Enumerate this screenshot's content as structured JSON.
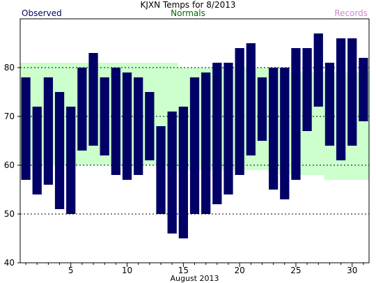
{
  "chart_data": {
    "type": "bar",
    "title": "KJXN Temps for 8/2013",
    "xlabel": "August 2013",
    "ylabel": "",
    "xlim": [
      0.5,
      31.5
    ],
    "ylim": [
      40,
      90
    ],
    "yticks": [
      40,
      50,
      60,
      70,
      80
    ],
    "xticks": [
      5,
      10,
      15,
      20,
      25,
      30
    ],
    "gridlines": [
      50,
      60,
      70,
      80
    ],
    "grid": true,
    "legend": {
      "observed": "Observed",
      "normals": "Normals",
      "records": "Records"
    },
    "colors": {
      "observed": "#000066",
      "normals_fill": "#ccffcc",
      "normals_label": "#006600",
      "records_label": "#cc88cc",
      "grid": "#000000"
    },
    "observed": {
      "days": [
        1,
        2,
        3,
        4,
        5,
        6,
        7,
        8,
        9,
        10,
        11,
        12,
        13,
        14,
        15,
        16,
        17,
        18,
        19,
        20,
        21,
        22,
        23,
        24,
        25,
        26,
        27,
        28,
        29,
        30,
        31
      ],
      "high": [
        78,
        72,
        78,
        75,
        72,
        80,
        83,
        78,
        80,
        79,
        78,
        75,
        68,
        71,
        72,
        78,
        79,
        81,
        81,
        84,
        85,
        78,
        80,
        80,
        84,
        84,
        87,
        81,
        86,
        86,
        82
      ],
      "low": [
        57,
        54,
        56,
        51,
        50,
        63,
        64,
        62,
        58,
        57,
        58,
        61,
        50,
        46,
        45,
        50,
        50,
        52,
        54,
        58,
        62,
        65,
        55,
        53,
        57,
        67,
        72,
        64,
        61,
        64,
        69
      ]
    },
    "normals": {
      "days": [
        1,
        2,
        3,
        4,
        5,
        6,
        7,
        8,
        9,
        10,
        11,
        12,
        13,
        14,
        15,
        16,
        17,
        18,
        19,
        20,
        21,
        22,
        23,
        24,
        25,
        26,
        27,
        28,
        29,
        30,
        31
      ],
      "high": [
        81,
        81,
        81,
        81,
        81,
        81,
        81,
        81,
        81,
        81,
        81,
        81,
        81,
        81,
        80,
        80,
        80,
        80,
        80,
        80,
        80,
        80,
        80,
        80,
        79,
        79,
        79,
        79,
        79,
        79,
        79
      ],
      "low": [
        60,
        60,
        60,
        60,
        60,
        60,
        60,
        60,
        60,
        60,
        60,
        60,
        60,
        60,
        59,
        59,
        59,
        59,
        59,
        59,
        59,
        59,
        59,
        58,
        58,
        58,
        58,
        57,
        57,
        57,
        57
      ]
    }
  }
}
